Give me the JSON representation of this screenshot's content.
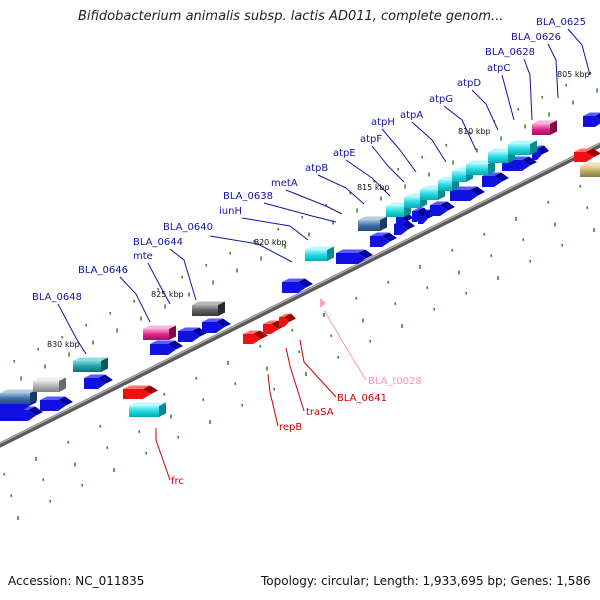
{
  "title": "Bifidobacterium animalis subsp. lactis AD011, complete genom...",
  "footer": {
    "accession": "Accession: NC_011835",
    "topology": "Topology: circular; Length: 1,933,695 bp; Genes: 1,586"
  },
  "colors": {
    "forward_cds": "#1010e0",
    "reverse_cds": "#ee1111",
    "trna": "#ff9ec8",
    "gene_highlight_cyan": "#19d8e0",
    "teal": "#1fa0a8",
    "steel": "#3a6ea8",
    "pink": "#e0208a",
    "grey": "#888888",
    "olive": "#b8a860",
    "label_forward": "#1414a0",
    "label_reverse": "#cc0000",
    "label_trna": "#ff8fc0"
  },
  "ticks": [
    {
      "text": "805 kbp"
    },
    {
      "text": "810 kbp"
    },
    {
      "text": "815 kbp"
    },
    {
      "text": "820 kbp"
    },
    {
      "text": "825 kbp"
    },
    {
      "text": "830 kbp"
    }
  ],
  "labels_forward": [
    {
      "text": "BLA_0625"
    },
    {
      "text": "BLA_0626"
    },
    {
      "text": "BLA_0628"
    },
    {
      "text": "atpC"
    },
    {
      "text": "atpD"
    },
    {
      "text": "atpG"
    },
    {
      "text": "atpA"
    },
    {
      "text": "atpH"
    },
    {
      "text": "atpF"
    },
    {
      "text": "atpE"
    },
    {
      "text": "atpB"
    },
    {
      "text": "metA"
    },
    {
      "text": "BLA_0638"
    },
    {
      "text": "iunH"
    },
    {
      "text": "BLA_0640"
    },
    {
      "text": "BLA_0644"
    },
    {
      "text": "mte"
    },
    {
      "text": "BLA_0646"
    },
    {
      "text": "BLA_0648"
    }
  ],
  "labels_reverse": [
    {
      "text": "BLA_t0028",
      "kind": "trna"
    },
    {
      "text": "BLA_0641",
      "kind": "cds"
    },
    {
      "text": "traSA",
      "kind": "cds"
    },
    {
      "text": "repB",
      "kind": "cds"
    },
    {
      "text": "frc",
      "kind": "cds"
    }
  ]
}
